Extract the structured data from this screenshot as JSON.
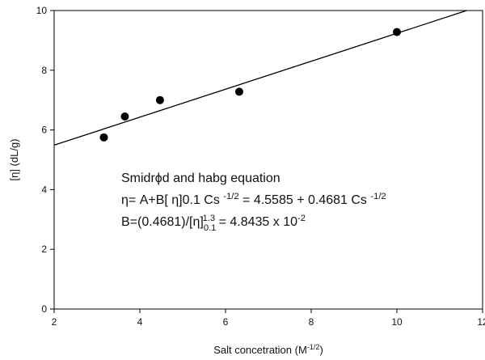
{
  "chart_data": {
    "type": "scatter",
    "xlabel": [
      {
        "text": "Salt concetration (M"
      },
      {
        "text": "-1/2",
        "shift": "super"
      },
      {
        "text": ")"
      }
    ],
    "ylabel": [
      {
        "text": "[η] (dL/g)"
      }
    ],
    "xlim": [
      2,
      12
    ],
    "xticks": [
      2,
      4,
      6,
      8,
      10,
      12
    ],
    "ylim": [
      0,
      10
    ],
    "yticks": [
      0,
      2,
      4,
      6,
      8,
      10
    ],
    "series": [
      {
        "color": "#000000",
        "marker": "circle",
        "x": [
          3.16,
          3.65,
          4.47,
          6.32,
          10.0
        ],
        "values": [
          5.75,
          6.45,
          7.0,
          7.28,
          9.28
        ]
      },
      {
        "color": "#000000",
        "marker": "line",
        "x": [
          2,
          11.63
        ],
        "values": [
          5.49,
          10
        ]
      }
    ],
    "annotation": [
      [
        {
          "text": "Smidrϕd and habg equation"
        }
      ],
      [
        {
          "text": "η= A+B[ η]0.1 Cs "
        },
        {
          "text": "-1/2",
          "shift": "super"
        },
        {
          "text": " = 4.5585 + 0.4681 Cs "
        },
        {
          "text": "-1/2",
          "shift": "super"
        }
      ],
      [
        {
          "text": "B=(0.4681)/[η]"
        },
        {
          "text": "0.1",
          "shift": "sub"
        },
        {
          "text": "1.3",
          "shift": "super"
        },
        {
          "text": " = 4.8435 x 10"
        },
        {
          "text": "-2",
          "shift": "super"
        }
      ]
    ]
  }
}
